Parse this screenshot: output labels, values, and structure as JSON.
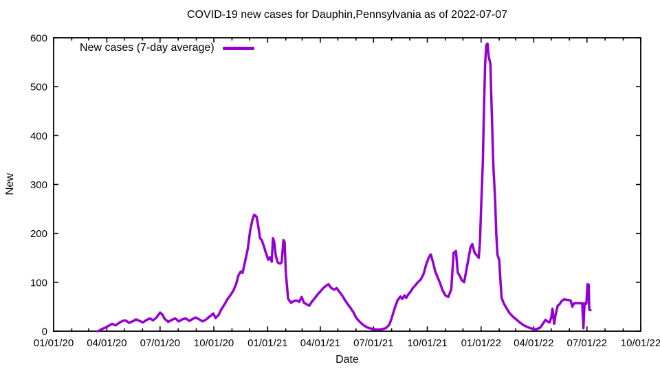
{
  "chart_data": {
    "type": "line",
    "title": "COVID-19 new cases for Dauphin,Pennsylvania as of 2022-07-07",
    "xlabel": "Date",
    "ylabel": "New",
    "grid": false,
    "frame": true,
    "x_axis": {
      "start_date": "2020-01-01",
      "end_date": "2022-10-01",
      "total_days": 1004,
      "major_tick_labels": [
        "01/01/20",
        "04/01/20",
        "07/01/20",
        "10/01/20",
        "01/01/21",
        "04/01/21",
        "07/01/21",
        "10/01/21",
        "01/01/22",
        "04/01/22",
        "07/01/22",
        "10/01/22"
      ],
      "major_tick_interval": "3 months",
      "minor_tick_interval": "1 month"
    },
    "y_axis": {
      "min": 0,
      "max": 600,
      "ticks": [
        0,
        100,
        200,
        300,
        400,
        500,
        600
      ]
    },
    "legend": {
      "label": "New cases (7-day average)",
      "position": "top-left",
      "line_color": "#9400D3"
    },
    "series": [
      {
        "name": "New cases (7-day average)",
        "color": "#9400D3",
        "points_day_value": [
          [
            76,
            0
          ],
          [
            82,
            4
          ],
          [
            88,
            7
          ],
          [
            94,
            11
          ],
          [
            100,
            15
          ],
          [
            106,
            12
          ],
          [
            112,
            17
          ],
          [
            118,
            21
          ],
          [
            123,
            22
          ],
          [
            129,
            17
          ],
          [
            135,
            20
          ],
          [
            141,
            24
          ],
          [
            147,
            21
          ],
          [
            153,
            18
          ],
          [
            159,
            23
          ],
          [
            165,
            26
          ],
          [
            170,
            22
          ],
          [
            176,
            28
          ],
          [
            182,
            38
          ],
          [
            186,
            34
          ],
          [
            190,
            25
          ],
          [
            196,
            19
          ],
          [
            202,
            23
          ],
          [
            208,
            26
          ],
          [
            214,
            20
          ],
          [
            220,
            24
          ],
          [
            226,
            26
          ],
          [
            232,
            21
          ],
          [
            238,
            25
          ],
          [
            243,
            28
          ],
          [
            249,
            24
          ],
          [
            255,
            20
          ],
          [
            261,
            24
          ],
          [
            267,
            30
          ],
          [
            273,
            36
          ],
          [
            277,
            27
          ],
          [
            282,
            33
          ],
          [
            287,
            45
          ],
          [
            293,
            56
          ],
          [
            297,
            65
          ],
          [
            302,
            73
          ],
          [
            307,
            82
          ],
          [
            312,
            96
          ],
          [
            316,
            114
          ],
          [
            320,
            122
          ],
          [
            323,
            119
          ],
          [
            327,
            140
          ],
          [
            332,
            168
          ],
          [
            336,
            205
          ],
          [
            340,
            228
          ],
          [
            343,
            238
          ],
          [
            347,
            234
          ],
          [
            350,
            214
          ],
          [
            353,
            190
          ],
          [
            356,
            186
          ],
          [
            360,
            172
          ],
          [
            363,
            160
          ],
          [
            367,
            146
          ],
          [
            370,
            151
          ],
          [
            373,
            142
          ],
          [
            375,
            190
          ],
          [
            377,
            184
          ],
          [
            380,
            154
          ],
          [
            383,
            141
          ],
          [
            387,
            138
          ],
          [
            390,
            141
          ],
          [
            393,
            186
          ],
          [
            395,
            182
          ],
          [
            397,
            120
          ],
          [
            401,
            66
          ],
          [
            406,
            58
          ],
          [
            410,
            61
          ],
          [
            415,
            63
          ],
          [
            420,
            60
          ],
          [
            424,
            70
          ],
          [
            428,
            58
          ],
          [
            433,
            55
          ],
          [
            437,
            52
          ],
          [
            442,
            61
          ],
          [
            447,
            68
          ],
          [
            452,
            76
          ],
          [
            456,
            81
          ],
          [
            461,
            88
          ],
          [
            466,
            93
          ],
          [
            470,
            96
          ],
          [
            475,
            88
          ],
          [
            480,
            85
          ],
          [
            484,
            88
          ],
          [
            489,
            80
          ],
          [
            494,
            72
          ],
          [
            499,
            62
          ],
          [
            503,
            55
          ],
          [
            508,
            47
          ],
          [
            513,
            38
          ],
          [
            517,
            28
          ],
          [
            522,
            21
          ],
          [
            528,
            14
          ],
          [
            534,
            9
          ],
          [
            540,
            6
          ],
          [
            547,
            4
          ],
          [
            554,
            3
          ],
          [
            561,
            4
          ],
          [
            568,
            6
          ],
          [
            574,
            13
          ],
          [
            578,
            26
          ],
          [
            583,
            46
          ],
          [
            588,
            63
          ],
          [
            593,
            71
          ],
          [
            596,
            66
          ],
          [
            600,
            73
          ],
          [
            603,
            68
          ],
          [
            607,
            76
          ],
          [
            610,
            80
          ],
          [
            614,
            88
          ],
          [
            618,
            93
          ],
          [
            623,
            100
          ],
          [
            628,
            106
          ],
          [
            633,
            118
          ],
          [
            637,
            136
          ],
          [
            642,
            152
          ],
          [
            645,
            157
          ],
          [
            649,
            140
          ],
          [
            653,
            121
          ],
          [
            656,
            112
          ],
          [
            661,
            98
          ],
          [
            665,
            84
          ],
          [
            670,
            73
          ],
          [
            675,
            70
          ],
          [
            680,
            86
          ],
          [
            684,
            160
          ],
          [
            688,
            164
          ],
          [
            691,
            120
          ],
          [
            695,
            112
          ],
          [
            698,
            104
          ],
          [
            702,
            100
          ],
          [
            706,
            126
          ],
          [
            709,
            146
          ],
          [
            713,
            172
          ],
          [
            716,
            178
          ],
          [
            720,
            160
          ],
          [
            723,
            156
          ],
          [
            727,
            150
          ],
          [
            729,
            182
          ],
          [
            731,
            252
          ],
          [
            734,
            345
          ],
          [
            736,
            458
          ],
          [
            738,
            548
          ],
          [
            740,
            585
          ],
          [
            742,
            588
          ],
          [
            744,
            562
          ],
          [
            747,
            546
          ],
          [
            748,
            500
          ],
          [
            750,
            420
          ],
          [
            752,
            338
          ],
          [
            755,
            268
          ],
          [
            757,
            198
          ],
          [
            759,
            156
          ],
          [
            762,
            145
          ],
          [
            764,
            104
          ],
          [
            766,
            68
          ],
          [
            770,
            56
          ],
          [
            775,
            46
          ],
          [
            779,
            38
          ],
          [
            785,
            30
          ],
          [
            791,
            24
          ],
          [
            797,
            18
          ],
          [
            804,
            12
          ],
          [
            811,
            8
          ],
          [
            818,
            5
          ],
          [
            825,
            4
          ],
          [
            832,
            7
          ],
          [
            837,
            16
          ],
          [
            841,
            23
          ],
          [
            844,
            20
          ],
          [
            848,
            18
          ],
          [
            851,
            28
          ],
          [
            853,
            46
          ],
          [
            856,
            15
          ],
          [
            858,
            31
          ],
          [
            862,
            52
          ],
          [
            865,
            55
          ],
          [
            869,
            62
          ],
          [
            873,
            65
          ],
          [
            878,
            64
          ],
          [
            884,
            63
          ],
          [
            887,
            50
          ],
          [
            890,
            57
          ],
          [
            895,
            57
          ],
          [
            900,
            57
          ],
          [
            904,
            57
          ],
          [
            906,
            6
          ],
          [
            908,
            57
          ],
          [
            911,
            56
          ],
          [
            913,
            96
          ],
          [
            915,
            95
          ],
          [
            916,
            44
          ],
          [
            918,
            43
          ]
        ]
      }
    ]
  },
  "colors": {
    "line": "#9400D3",
    "text": "#000000",
    "frame": "#000000",
    "background": "#FFFFFF"
  }
}
